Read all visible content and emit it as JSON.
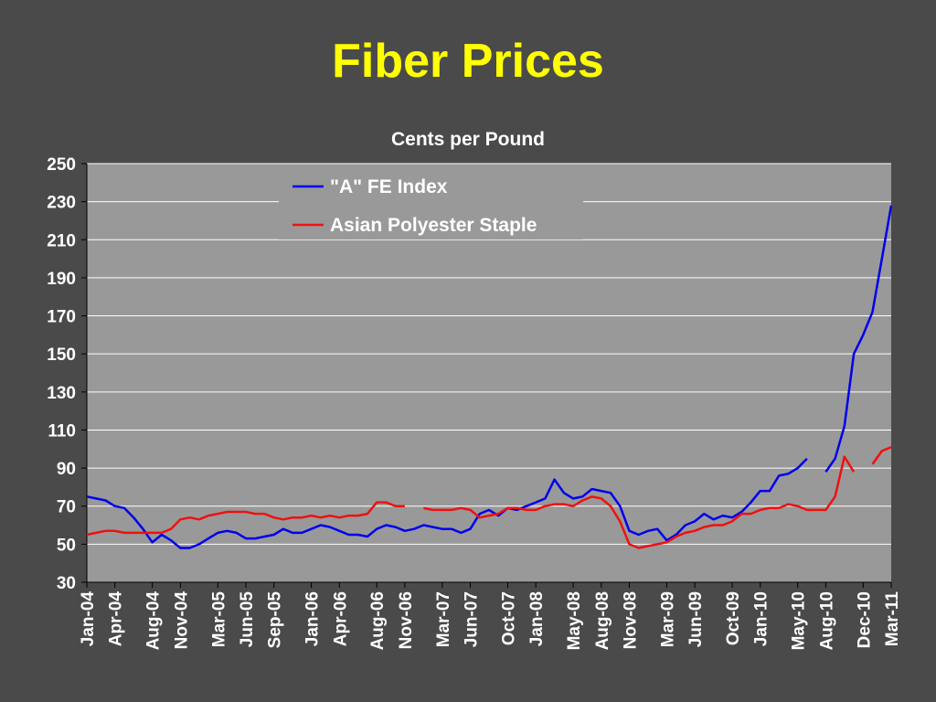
{
  "chart_data": {
    "type": "line",
    "title": "Fiber Prices",
    "subtitle": "Cents per Pound",
    "categories": [
      "Jan-04",
      null,
      null,
      "Apr-04",
      null,
      null,
      null,
      "Aug-04",
      null,
      null,
      "Nov-04",
      null,
      null,
      null,
      "Mar-05",
      null,
      null,
      "Jun-05",
      null,
      null,
      "Sep-05",
      null,
      null,
      null,
      "Jan-06",
      null,
      null,
      "Apr-06",
      null,
      null,
      null,
      "Aug-06",
      null,
      null,
      "Nov-06",
      null,
      null,
      null,
      "Mar-07",
      null,
      null,
      "Jun-07",
      null,
      null,
      null,
      "Oct-07",
      null,
      null,
      "Jan-08",
      null,
      null,
      null,
      "May-08",
      null,
      null,
      "Aug-08",
      null,
      null,
      "Nov-08",
      null,
      null,
      null,
      "Mar-09",
      null,
      null,
      "Jun-09",
      null,
      null,
      null,
      "Oct-09",
      null,
      null,
      "Jan-10",
      null,
      null,
      null,
      "May-10",
      null,
      null,
      "Aug-10",
      null,
      null,
      null,
      "Dec-10",
      null,
      null,
      "Mar-11"
    ],
    "series": [
      {
        "name": "\"A\" FE Index",
        "color": "#0000ee",
        "values": [
          75,
          74,
          73,
          70,
          69,
          64,
          58,
          51,
          55,
          52,
          48,
          48,
          50,
          53,
          56,
          57,
          56,
          53,
          53,
          54,
          55,
          58,
          56,
          56,
          58,
          60,
          59,
          57,
          55,
          55,
          54,
          58,
          60,
          59,
          57,
          58,
          60,
          59,
          58,
          58,
          56,
          58,
          66,
          68,
          65,
          69,
          68,
          70,
          72,
          74,
          84,
          77,
          74,
          75,
          79,
          78,
          77,
          70,
          57,
          55,
          57,
          58,
          52,
          55,
          60,
          62,
          66,
          63,
          65,
          64,
          67,
          72,
          78,
          78,
          86,
          87,
          90,
          95,
          null,
          88,
          95,
          112,
          150,
          160,
          172,
          200,
          228
        ]
      },
      {
        "name": "Asian Polyester Staple",
        "color": "#ee1111",
        "values": [
          55,
          56,
          57,
          57,
          56,
          56,
          56,
          56,
          56,
          58,
          63,
          64,
          63,
          65,
          66,
          67,
          67,
          67,
          66,
          66,
          64,
          63,
          64,
          64,
          65,
          64,
          65,
          64,
          65,
          65,
          66,
          72,
          72,
          70,
          70,
          null,
          69,
          68,
          68,
          68,
          69,
          68,
          64,
          65,
          66,
          69,
          69,
          68,
          68,
          70,
          71,
          71,
          70,
          73,
          75,
          74,
          70,
          62,
          50,
          48,
          49,
          50,
          51,
          54,
          56,
          57,
          59,
          60,
          60,
          62,
          66,
          66,
          68,
          69,
          69,
          71,
          70,
          68,
          68,
          68,
          75,
          96,
          88,
          null,
          92,
          99,
          101
        ]
      }
    ],
    "ylim": [
      30,
      250
    ],
    "yticks": [
      30,
      50,
      70,
      90,
      110,
      130,
      150,
      170,
      190,
      210,
      230,
      250
    ],
    "grid": true,
    "legend": "top"
  }
}
